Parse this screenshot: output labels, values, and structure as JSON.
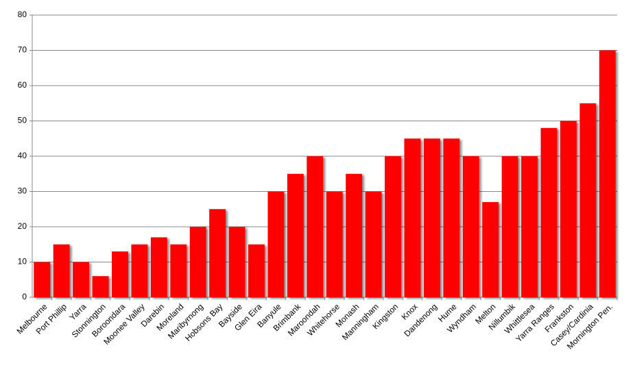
{
  "chart_data": {
    "type": "bar",
    "categories": [
      "Melbourne",
      "Port Phillip",
      "Yarra",
      "Stonnington",
      "Boroondara",
      "Moonee Valley",
      "Darebin",
      "Moreland",
      "Maribyrnong",
      "Hobsons Bay",
      "Bayside",
      "Glen Eira",
      "Banyule",
      "Brimbank",
      "Maroondah",
      "Whitehorse",
      "Monash",
      "Manningham",
      "Kingston",
      "Knox",
      "Dandenong",
      "Hume",
      "Wyndham",
      "Melton",
      "Nillumbik",
      "Whittlesea",
      "Yarra Ranges",
      "Frankston",
      "Casey/Cardinia",
      "Mornington Pen."
    ],
    "values": [
      10,
      15,
      10,
      6,
      13,
      15,
      17,
      15,
      20,
      25,
      20,
      15,
      30,
      35,
      40,
      30,
      35,
      30,
      40,
      45,
      45,
      45,
      40,
      27,
      40,
      40,
      48,
      50,
      55,
      70
    ],
    "color": "#ff0000",
    "ylim": [
      0,
      80
    ],
    "yticks": [
      0,
      10,
      20,
      30,
      40,
      50,
      60,
      70,
      80
    ],
    "grid": true
  }
}
